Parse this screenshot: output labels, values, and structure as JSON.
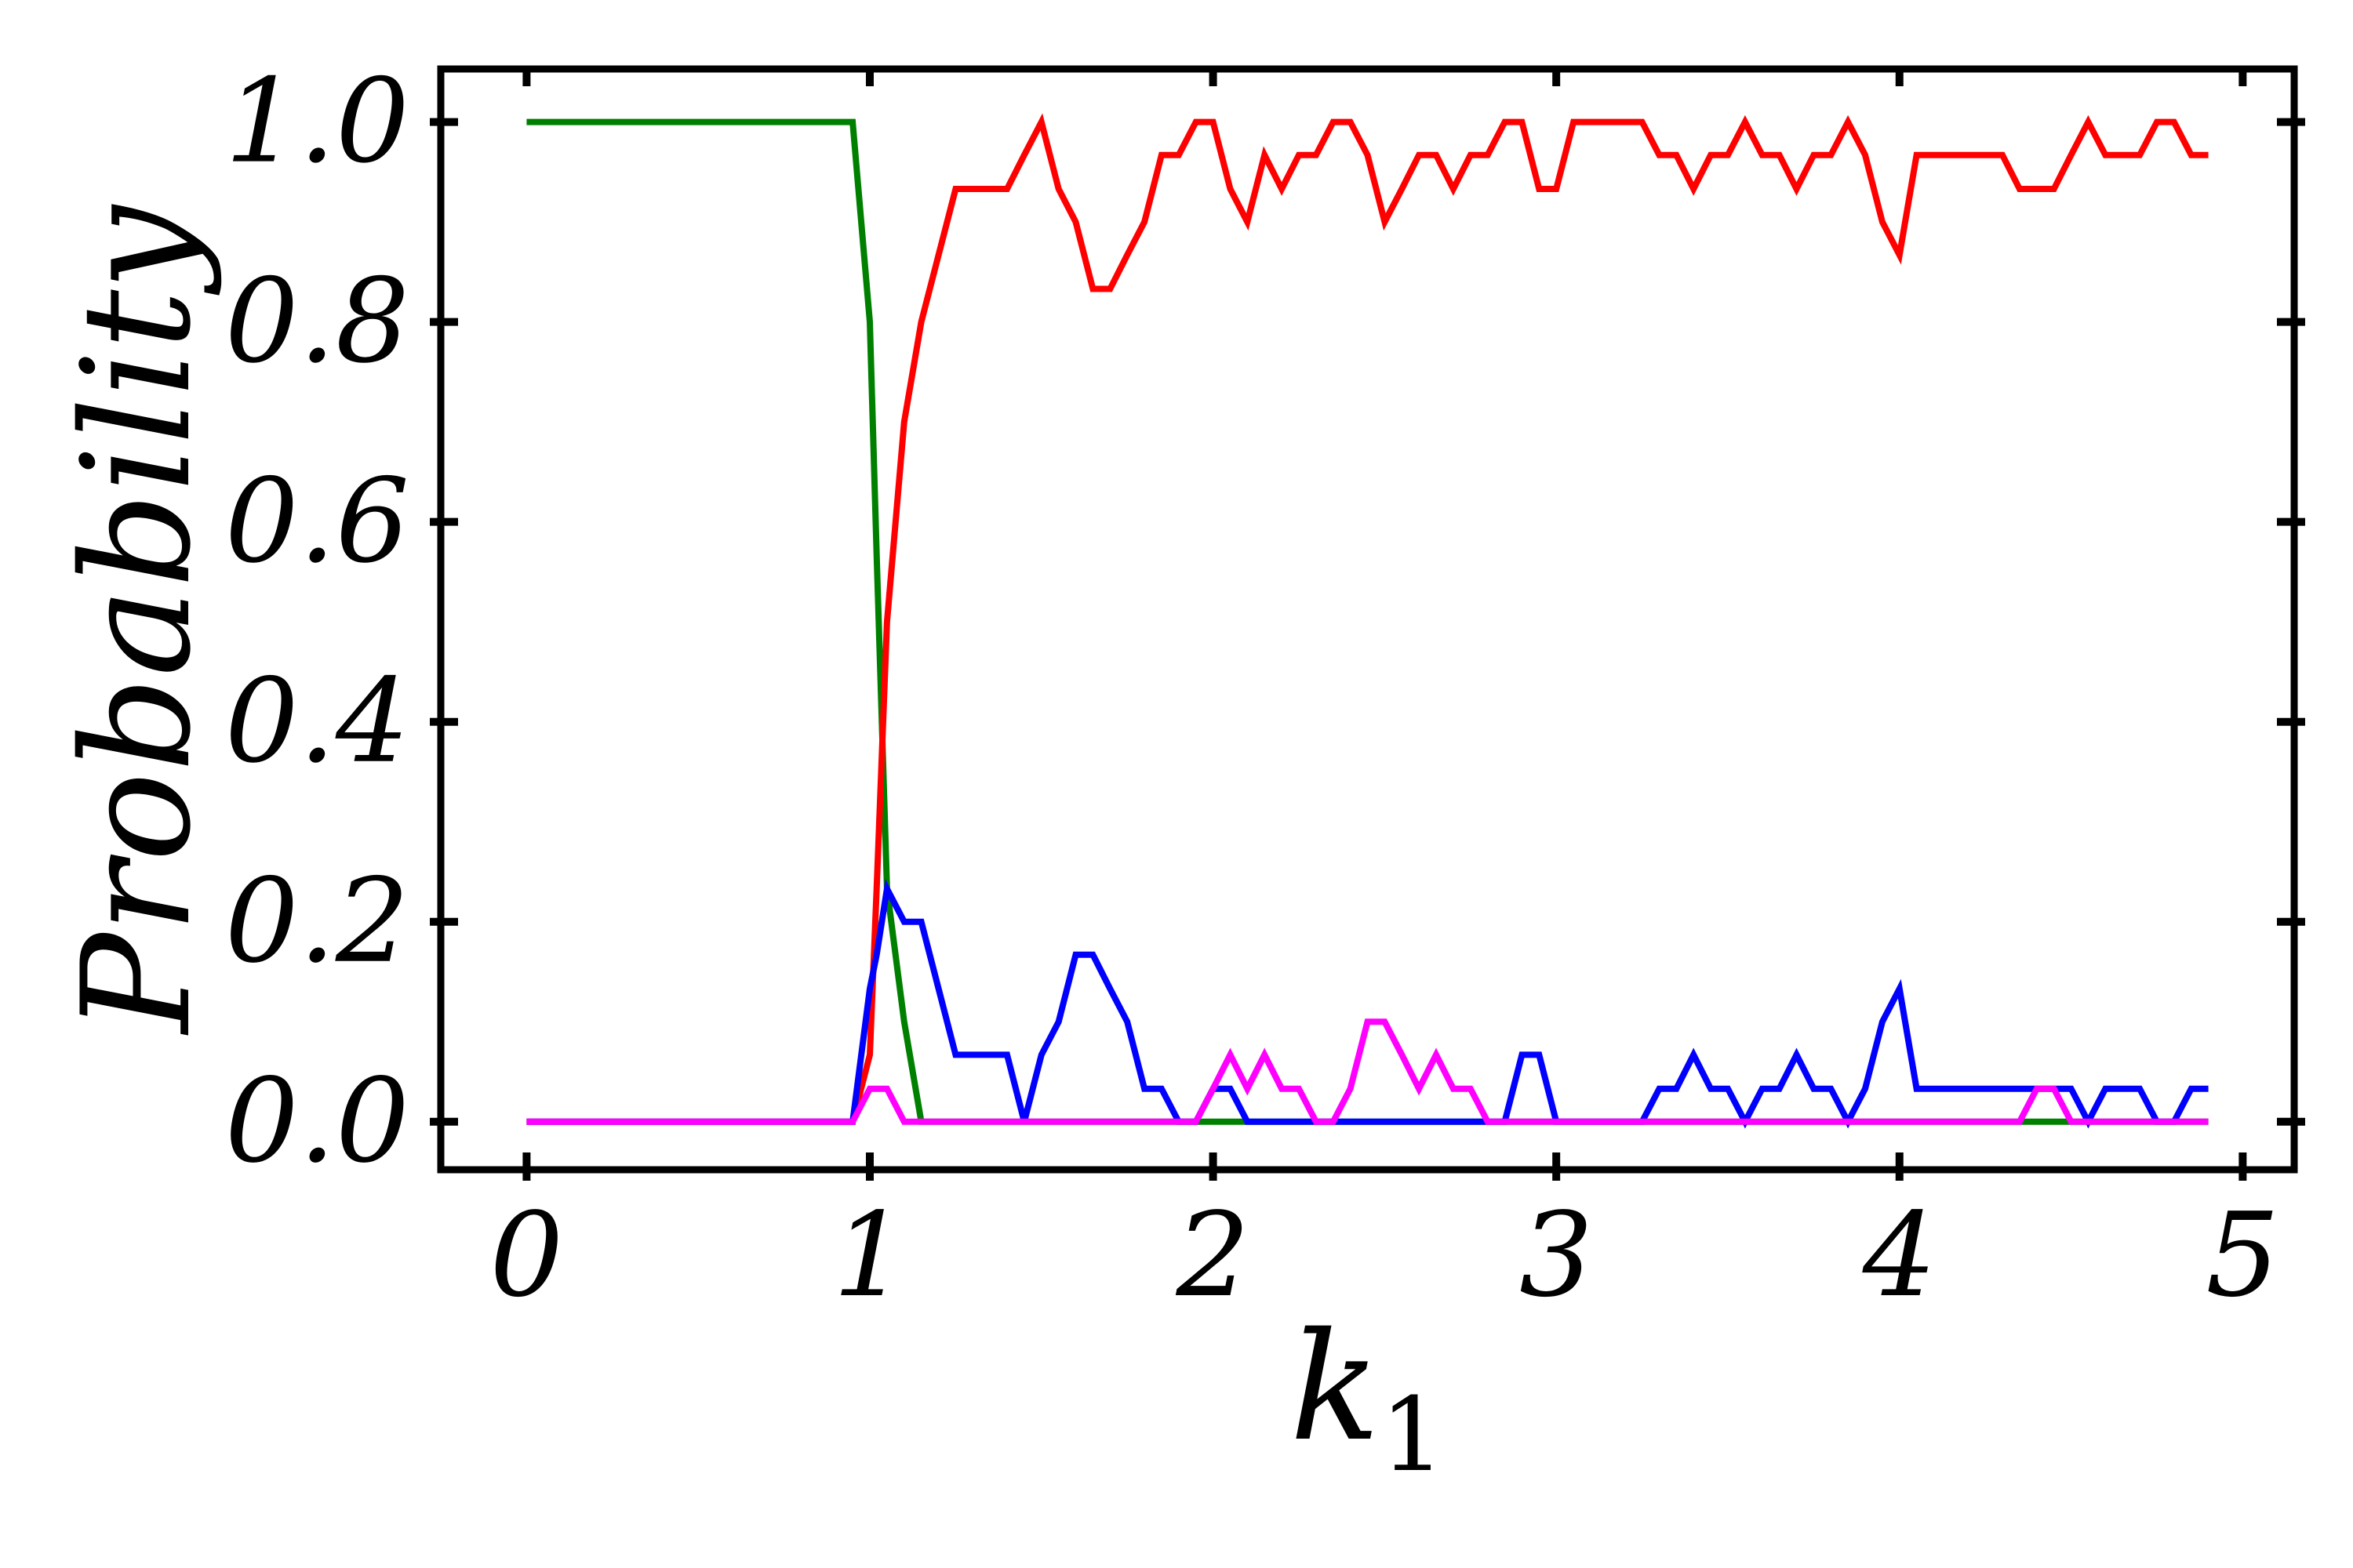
{
  "chart_data": {
    "type": "line",
    "title": "",
    "xlabel": "k",
    "xlabel_sub": "1",
    "ylabel": "Probability",
    "xlim": [
      -0.25,
      5.15
    ],
    "ylim": [
      -0.048,
      1.053
    ],
    "xticks": [
      0,
      1,
      2,
      3,
      4,
      5
    ],
    "xtick_labels": [
      "0",
      "1",
      "2",
      "3",
      "4",
      "5"
    ],
    "yticks": [
      0.0,
      0.2,
      0.4,
      0.6,
      0.8,
      1.0
    ],
    "ytick_labels": [
      "0.0",
      "0.2",
      "0.4",
      "0.6",
      "0.8",
      "1.0"
    ],
    "grid": false,
    "legend": "none",
    "x": [
      0,
      0.95,
      1.0,
      1.02,
      1.05,
      1.1,
      1.15,
      1.25,
      1.35,
      1.4,
      1.45,
      1.5,
      1.55,
      1.6,
      1.65,
      1.7,
      1.75,
      1.8,
      1.85,
      1.9,
      1.95,
      2.0,
      2.05,
      2.1,
      2.15,
      2.2,
      2.25,
      2.3,
      2.35,
      2.4,
      2.45,
      2.5,
      2.55,
      2.6,
      2.65,
      2.7,
      2.75,
      2.8,
      2.85,
      2.9,
      2.95,
      3.0,
      3.05,
      3.1,
      3.15,
      3.2,
      3.25,
      3.3,
      3.35,
      3.4,
      3.45,
      3.5,
      3.55,
      3.6,
      3.65,
      3.7,
      3.75,
      3.8,
      3.85,
      3.9,
      3.95,
      4.0,
      4.05,
      4.1,
      4.15,
      4.2,
      4.25,
      4.3,
      4.35,
      4.4,
      4.45,
      4.5,
      4.55,
      4.6,
      4.65,
      4.7,
      4.75,
      4.8,
      4.85,
      4.9
    ],
    "series": [
      {
        "color": "#008000",
        "values": [
          1.0,
          1.0,
          0.8,
          0.567,
          0.233,
          0.1,
          0.0,
          0.0,
          0.0,
          0.0,
          0.0,
          0.0,
          0.0,
          0.0,
          0.0,
          0.0,
          0.0,
          0.0,
          0.0,
          0.0,
          0.0,
          0.0,
          0.0,
          0.0,
          0.0,
          0.0,
          0.0,
          0.0,
          0.0,
          0.0,
          0.0,
          0.0,
          0.0,
          0.0,
          0.0,
          0.0,
          0.0,
          0.0,
          0.0,
          0.0,
          0.0,
          0.0,
          0.0,
          0.0,
          0.0,
          0.0,
          0.0,
          0.0,
          0.0,
          0.0,
          0.0,
          0.0,
          0.0,
          0.0,
          0.0,
          0.0,
          0.0,
          0.0,
          0.0,
          0.0,
          0.0,
          0.0,
          0.0,
          0.0,
          0.0,
          0.0,
          0.0,
          0.0,
          0.0,
          0.0,
          0.0,
          0.0,
          0.0,
          0.0,
          0.0,
          0.0,
          0.0,
          0.0,
          0.0,
          0.0
        ]
      },
      {
        "color": "#ff0000",
        "values": [
          0.0,
          0.0,
          0.067,
          0.233,
          0.5,
          0.7,
          0.8,
          0.933,
          0.933,
          0.933,
          0.967,
          1.0,
          0.933,
          0.9,
          0.833,
          0.833,
          0.867,
          0.9,
          0.967,
          0.967,
          1.0,
          1.0,
          0.933,
          0.9,
          0.967,
          0.933,
          0.967,
          0.967,
          1.0,
          1.0,
          0.967,
          0.9,
          0.933,
          0.967,
          0.967,
          0.933,
          0.967,
          0.967,
          1.0,
          1.0,
          0.933,
          0.933,
          1.0,
          1.0,
          1.0,
          1.0,
          1.0,
          0.967,
          0.967,
          0.933,
          0.967,
          0.967,
          1.0,
          0.967,
          0.967,
          0.933,
          0.967,
          0.967,
          1.0,
          0.967,
          0.9,
          0.867,
          0.967,
          0.967,
          0.967,
          0.967,
          0.967,
          0.967,
          0.933,
          0.933,
          0.933,
          0.967,
          1.0,
          0.967,
          0.967,
          0.967,
          1.0,
          1.0,
          0.967,
          0.967
        ]
      },
      {
        "color": "#0000ff",
        "values": [
          0.0,
          0.0,
          0.133,
          0.167,
          0.233,
          0.2,
          0.2,
          0.067,
          0.067,
          0.067,
          0.0,
          0.067,
          0.1,
          0.167,
          0.167,
          0.133,
          0.1,
          0.033,
          0.033,
          0.0,
          0.0,
          0.033,
          0.033,
          0.0,
          0.0,
          0.0,
          0.0,
          0.0,
          0.0,
          0.0,
          0.0,
          0.0,
          0.0,
          0.0,
          0.0,
          0.0,
          0.0,
          0.0,
          0.0,
          0.067,
          0.067,
          0.0,
          0.0,
          0.0,
          0.0,
          0.0,
          0.0,
          0.033,
          0.033,
          0.067,
          0.033,
          0.033,
          0.0,
          0.033,
          0.033,
          0.067,
          0.033,
          0.033,
          0.0,
          0.033,
          0.1,
          0.133,
          0.033,
          0.033,
          0.033,
          0.033,
          0.033,
          0.033,
          0.033,
          0.033,
          0.033,
          0.033,
          0.0,
          0.033,
          0.033,
          0.033,
          0.0,
          0.0,
          0.033,
          0.033
        ]
      },
      {
        "color": "#ff00ff",
        "values": [
          0.0,
          0.0,
          0.033,
          0.033,
          0.033,
          0.0,
          0.0,
          0.0,
          0.0,
          0.0,
          0.0,
          0.0,
          0.0,
          0.0,
          0.0,
          0.0,
          0.0,
          0.0,
          0.0,
          0.0,
          0.0,
          0.033,
          0.067,
          0.033,
          0.067,
          0.033,
          0.033,
          0.0,
          0.0,
          0.033,
          0.1,
          0.1,
          0.067,
          0.033,
          0.067,
          0.033,
          0.033,
          0.0,
          0.0,
          0.0,
          0.0,
          0.0,
          0.0,
          0.0,
          0.0,
          0.0,
          0.0,
          0.0,
          0.0,
          0.0,
          0.0,
          0.0,
          0.0,
          0.0,
          0.0,
          0.0,
          0.0,
          0.0,
          0.0,
          0.0,
          0.0,
          0.0,
          0.0,
          0.0,
          0.0,
          0.0,
          0.0,
          0.0,
          0.0,
          0.033,
          0.033,
          0.0,
          0.0,
          0.0,
          0.0,
          0.0,
          0.0,
          0.0,
          0.0,
          0.0
        ]
      }
    ]
  }
}
